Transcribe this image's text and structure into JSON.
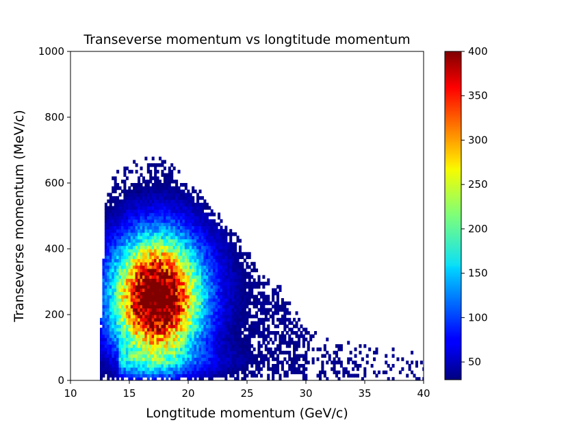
{
  "chart_data": {
    "type": "heatmap",
    "title": "Transeverse momentum vs longtitude momentum",
    "xlabel": "Longtitude momentum (GeV/c)",
    "ylabel": "Transeverse momentum (MeV/c)",
    "xlim": [
      10,
      40
    ],
    "ylim": [
      0,
      1000
    ],
    "xticks": [
      10,
      15,
      20,
      25,
      30,
      35,
      40
    ],
    "yticks": [
      0,
      200,
      400,
      600,
      800,
      1000
    ],
    "colorbar": {
      "colormap": "jet",
      "min": 30,
      "max": 400,
      "ticks": [
        50,
        100,
        150,
        200,
        250,
        300,
        350,
        400
      ],
      "placement": "right"
    },
    "bins": {
      "x_bin_width": 0.2,
      "y_bin_width": 10,
      "x_range": [
        12.5,
        40
      ],
      "y_range": [
        0,
        680
      ]
    },
    "distribution": {
      "peak": {
        "x": 17.3,
        "y": 250,
        "count": 400
      },
      "main_lobe": {
        "x_spread": 2.4,
        "y_spread": 120
      },
      "low_pt_tail": {
        "x_extent": [
          14,
          40
        ],
        "y_center": 60,
        "y_spread": 30,
        "count_at_start": 90
      },
      "upper_boundary": [
        {
          "x": 13,
          "y": 560
        },
        {
          "x": 14,
          "y": 640
        },
        {
          "x": 16,
          "y": 660
        },
        {
          "x": 18,
          "y": 670
        },
        {
          "x": 20,
          "y": 600
        },
        {
          "x": 22,
          "y": 520
        },
        {
          "x": 24,
          "y": 430
        },
        {
          "x": 26,
          "y": 340
        },
        {
          "x": 28,
          "y": 270
        },
        {
          "x": 30,
          "y": 150
        },
        {
          "x": 32,
          "y": 110
        },
        {
          "x": 36,
          "y": 90
        },
        {
          "x": 40,
          "y": 70
        }
      ],
      "min_visible_count": 30
    }
  }
}
